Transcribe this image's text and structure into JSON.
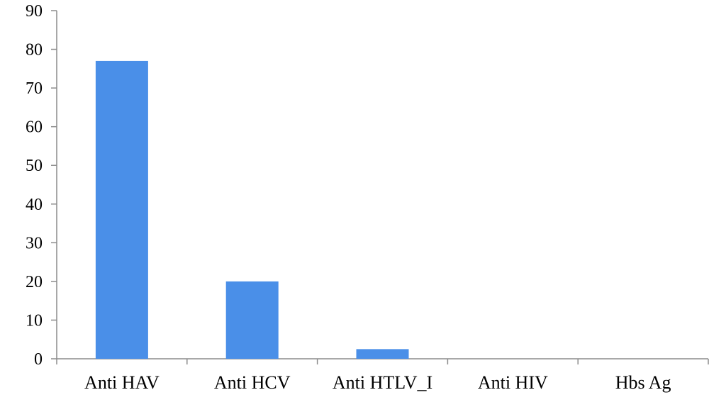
{
  "chart_data": {
    "type": "bar",
    "categories": [
      "Anti HAV",
      "Anti HCV",
      "Anti HTLV_I",
      "Anti HIV",
      "Hbs Ag"
    ],
    "values": [
      77,
      20,
      2.5,
      0,
      0
    ],
    "ylim": [
      0,
      90
    ],
    "yticks": [
      0,
      10,
      20,
      30,
      40,
      50,
      60,
      70,
      80,
      90
    ],
    "bar_color": "#4a8fe8",
    "axis_color": "#8c8c8c",
    "grid": false,
    "legend": "none"
  }
}
